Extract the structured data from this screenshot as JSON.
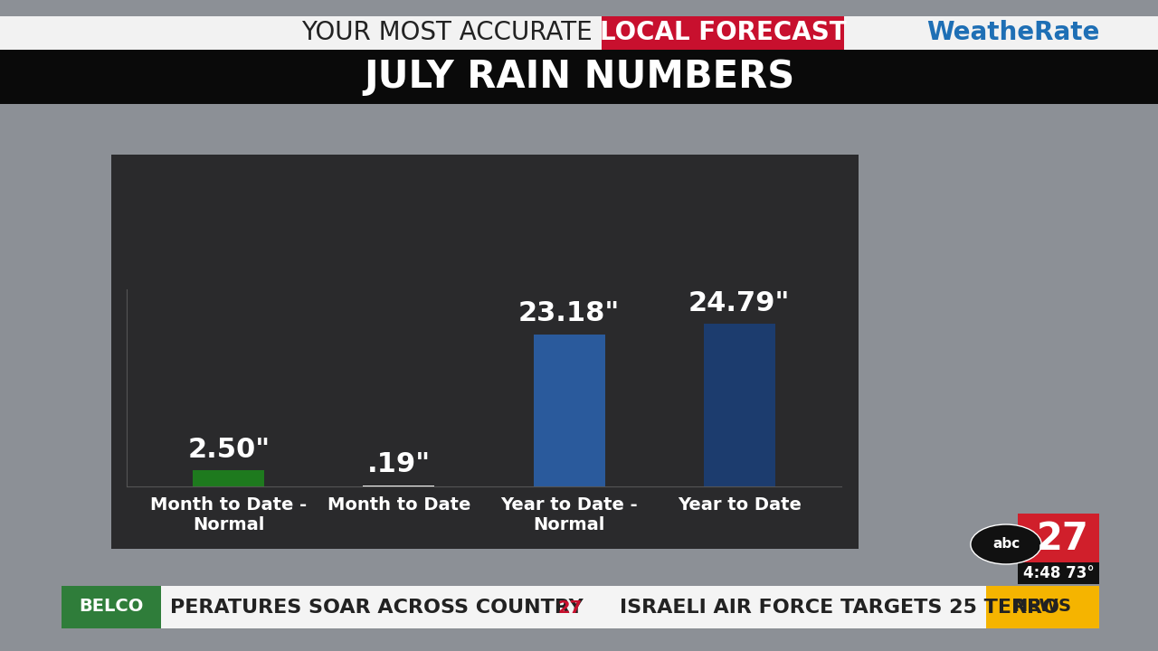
{
  "chart_data": {
    "type": "bar",
    "title": "JULY RAIN NUMBERS",
    "categories": [
      "Month to Date - Normal",
      "Month to Date",
      "Year to Date - Normal",
      "Year to Date"
    ],
    "values": [
      2.5,
      0.19,
      23.18,
      24.79
    ],
    "value_labels": [
      "2.50\"",
      ".19\"",
      "23.18\"",
      "24.79\""
    ],
    "colors": [
      "#1e7a1e",
      "#ffffff",
      "#2a5a9c",
      "#1c3c6e"
    ],
    "ylim": [
      0,
      30
    ],
    "yticks": [],
    "grid": false,
    "data_labels": true,
    "tick_labels": "x",
    "annotations": [
      "YOUR MOST ACCURATE",
      "LOCAL FORECAST",
      "WeatheRate",
      "abc",
      "27",
      "4:48 73°",
      "BELCO",
      "PERATURES SOAR ACROSS COUNTRY",
      "27",
      "ISRAELI AIR FORCE TARGETS 25 TERRO",
      "NEWS"
    ]
  }
}
